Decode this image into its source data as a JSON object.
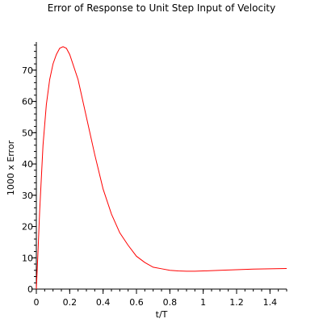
{
  "chart_data": {
    "type": "line",
    "title": "Error of Response to Unit Step Input of Velocity",
    "xlabel": "t/T",
    "ylabel": "1000 x Error",
    "xlim": [
      0,
      1.5
    ],
    "ylim": [
      0,
      79
    ],
    "x_ticks": [
      0,
      0.2,
      0.4,
      0.6,
      0.8,
      1,
      1.2,
      1.4
    ],
    "x_tick_labels": [
      "0",
      "0.2",
      "0.4",
      "0.6",
      "0.8",
      "1",
      "1.2",
      "1.4"
    ],
    "y_ticks": [
      0,
      10,
      20,
      30,
      40,
      50,
      60,
      70
    ],
    "y_tick_labels": [
      "0",
      "10",
      "20",
      "30",
      "40",
      "50",
      "60",
      "70"
    ],
    "minor_ticks": true,
    "grid": false,
    "legend": "none",
    "series": [
      {
        "color": "#ff0000",
        "x": [
          0,
          0.01,
          0.02,
          0.04,
          0.06,
          0.08,
          0.1,
          0.12,
          0.14,
          0.16,
          0.18,
          0.2,
          0.25,
          0.3,
          0.35,
          0.4,
          0.45,
          0.5,
          0.55,
          0.6,
          0.65,
          0.7,
          0.75,
          0.8,
          0.85,
          0.9,
          0.95,
          1.0,
          1.1,
          1.2,
          1.3,
          1.4,
          1.5
        ],
        "y": [
          0,
          12,
          25,
          46,
          59,
          67,
          72,
          75,
          77,
          77.5,
          77,
          75,
          67,
          55,
          43,
          32,
          24,
          18,
          14,
          10.5,
          8.5,
          7,
          6.5,
          6,
          5.8,
          5.7,
          5.7,
          5.8,
          6,
          6.2,
          6.4,
          6.5,
          6.6
        ]
      }
    ]
  }
}
